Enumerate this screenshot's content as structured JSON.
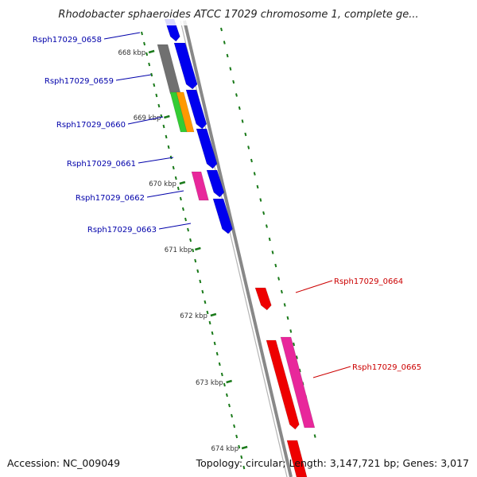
{
  "title": "Rhodobacter sphaeroides ATCC 17029 chromosome 1, complete ge...",
  "accession": "Accession: NC_009049",
  "summary": "Topology: circular; Length: 3,147,721 bp; Genes: 3,017",
  "colors": {
    "backbone": "#888888",
    "tick": "#1a7a1a",
    "forward_gene": "#0000ee",
    "reverse_gene": "#ee0000",
    "pink_gene": "#e8279b",
    "gray_gene": "#707070",
    "green_gene": "#33cc33",
    "orange_gene": "#ff9900",
    "label_blue": "#0000aa",
    "label_red": "#cc0000"
  },
  "kbp_markers": [
    {
      "text": "668 kbp"
    },
    {
      "text": "669 kbp"
    },
    {
      "text": "670 kbp"
    },
    {
      "text": "671 kbp"
    },
    {
      "text": "672 kbp"
    },
    {
      "text": "673 kbp"
    },
    {
      "text": "674 kbp"
    }
  ],
  "gene_labels": [
    {
      "text": "Rsph17029_0658",
      "strand": "forward"
    },
    {
      "text": "Rsph17029_0659",
      "strand": "forward"
    },
    {
      "text": "Rsph17029_0660",
      "strand": "forward"
    },
    {
      "text": "Rsph17029_0661",
      "strand": "forward"
    },
    {
      "text": "Rsph17029_0662",
      "strand": "forward"
    },
    {
      "text": "Rsph17029_0663",
      "strand": "forward"
    },
    {
      "text": "Rsph17029_0664",
      "strand": "reverse"
    },
    {
      "text": "Rsph17029_0665",
      "strand": "reverse"
    }
  ]
}
